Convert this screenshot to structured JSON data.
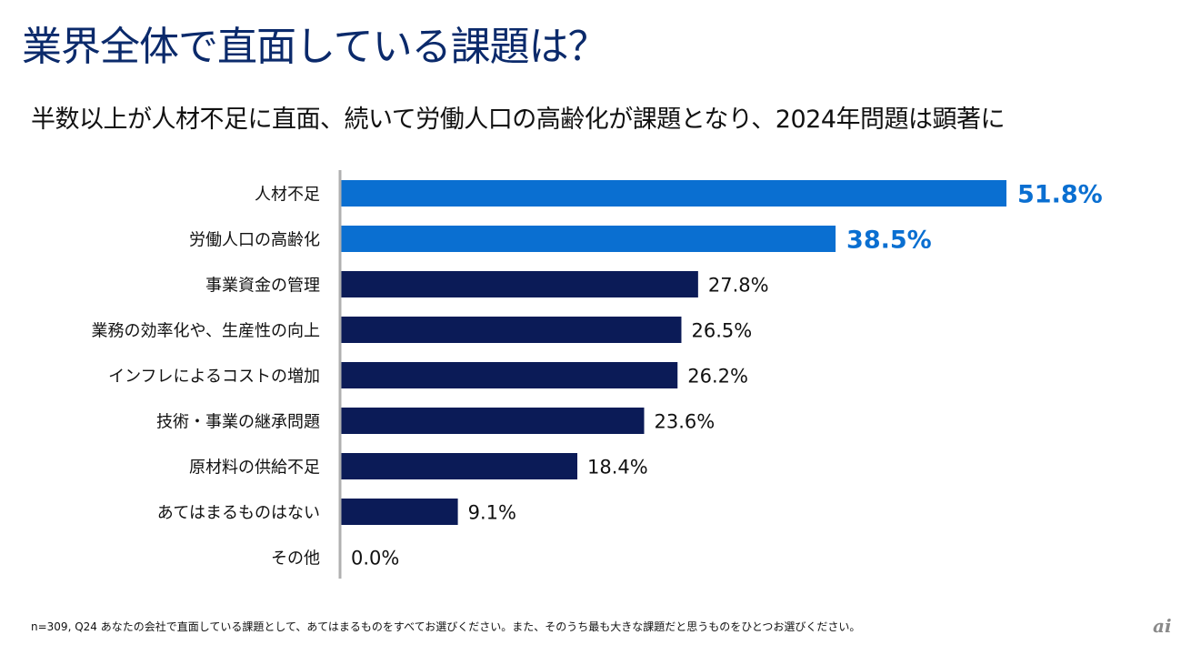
{
  "header": {
    "title": "業界全体で直面している課題は？",
    "subtitle": "半数以上が人材不足に直面、続いて労働人口の高齢化が課題となり、2024年問題は顕著に"
  },
  "colors": {
    "highlight": "#0a6fd1",
    "normal": "#0b1b57",
    "axis": "#b0b0b0"
  },
  "chart_data": {
    "type": "bar",
    "orientation": "horizontal",
    "title": "業界全体で直面している課題は？",
    "xlabel": "",
    "ylabel": "",
    "grid": false,
    "legend": "none",
    "categories": [
      "人材不足",
      "労働人口の高齢化",
      "事業資金の管理",
      "業務の効率化や、生産性の向上",
      "インフレによるコストの増加",
      "技術・事業の継承問題",
      "原材料の供給不足",
      "あてはまるものはない",
      "その他"
    ],
    "values": [
      51.8,
      38.5,
      27.8,
      26.5,
      26.2,
      23.6,
      18.4,
      9.1,
      0.0
    ],
    "value_labels": [
      "51.8%",
      "38.5%",
      "27.8%",
      "26.5%",
      "26.2%",
      "23.6%",
      "18.4%",
      "9.1%",
      "0.0%"
    ],
    "highlighted": [
      true,
      true,
      false,
      false,
      false,
      false,
      false,
      false,
      false
    ],
    "unit": "%"
  },
  "footer": {
    "note": "n=309, Q24 あなたの会社で直面している課題として、あてはまるものをすべてお選びください。また、そのうち最も大きな課題だと思うものをひとつお選びください。",
    "logo": "ai"
  }
}
